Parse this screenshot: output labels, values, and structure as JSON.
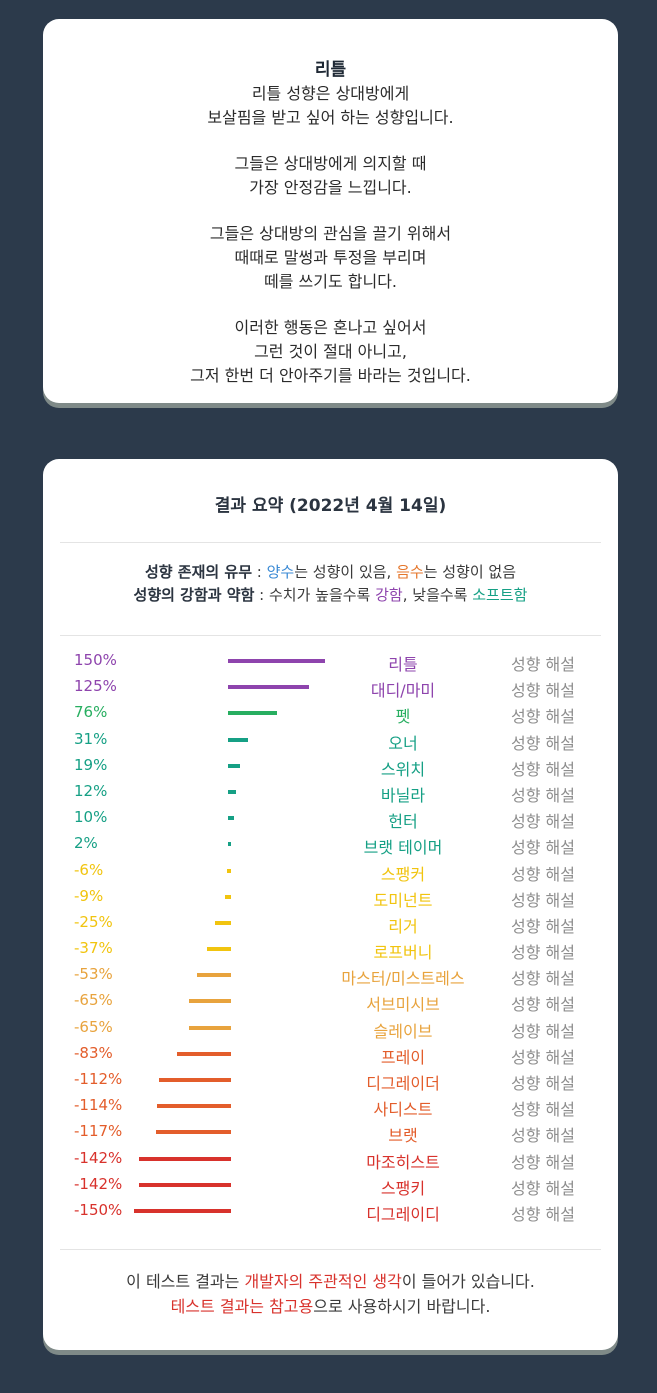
{
  "profile": {
    "title": "리틀",
    "paragraphs": [
      [
        "리틀 성향은 상대방에게",
        "보살핌을 받고 싶어 하는 성향입니다."
      ],
      [
        "그들은 상대방에게 의지할 때",
        "가장 안정감을 느낍니다."
      ],
      [
        "그들은 상대방의 관심을 끌기 위해서",
        "때때로 말썽과 투정을 부리며",
        "떼를 쓰기도 합니다."
      ],
      [
        "이러한 행동은 혼나고 싶어서",
        "그런 것이 절대 아니고,",
        "그저 한번 더 안아주기를 바라는 것입니다."
      ]
    ]
  },
  "summary": {
    "title": "결과 요약 (2022년 4월 14일)",
    "legend1": {
      "key": "성향 존재의 유무",
      "sep": " : ",
      "pos_word": "양수",
      "pos_text": "는 성향이 있음, ",
      "neg_word": "음수",
      "neg_text": "는 성향이 없음"
    },
    "legend2": {
      "key": "성향의 강함과 약함",
      "sep": " : ",
      "text1": "수치가 높을수록 ",
      "strong_word": "강함",
      "text2": ", 낮을수록 ",
      "soft_word": "소프트함"
    },
    "desc_label": "성향 해설",
    "rows": [
      {
        "pct": "150%",
        "value": 150,
        "name": "리틀",
        "color": "#8e44ad"
      },
      {
        "pct": "125%",
        "value": 125,
        "name": "대디/마미",
        "color": "#8e44ad"
      },
      {
        "pct": "76%",
        "value": 76,
        "name": "펫",
        "color": "#27ae60"
      },
      {
        "pct": "31%",
        "value": 31,
        "name": "오너",
        "color": "#16a085"
      },
      {
        "pct": "19%",
        "value": 19,
        "name": "스위치",
        "color": "#16a085"
      },
      {
        "pct": "12%",
        "value": 12,
        "name": "바닐라",
        "color": "#16a085"
      },
      {
        "pct": "10%",
        "value": 10,
        "name": "헌터",
        "color": "#16a085"
      },
      {
        "pct": "2%",
        "value": 2,
        "name": "브랫 테이머",
        "color": "#16a085"
      },
      {
        "pct": "-6%",
        "value": -6,
        "name": "스팽커",
        "color": "#f1c40f"
      },
      {
        "pct": "-9%",
        "value": -9,
        "name": "도미넌트",
        "color": "#f1c40f"
      },
      {
        "pct": "-25%",
        "value": -25,
        "name": "리거",
        "color": "#f1c40f"
      },
      {
        "pct": "-37%",
        "value": -37,
        "name": "로프버니",
        "color": "#f1c40f"
      },
      {
        "pct": "-53%",
        "value": -53,
        "name": "마스터/미스트레스",
        "color": "#e8a33d"
      },
      {
        "pct": "-65%",
        "value": -65,
        "name": "서브미시브",
        "color": "#e8a33d"
      },
      {
        "pct": "-65%",
        "value": -65,
        "name": "슬레이브",
        "color": "#e8a33d"
      },
      {
        "pct": "-83%",
        "value": -83,
        "name": "프레이",
        "color": "#e35d2b"
      },
      {
        "pct": "-112%",
        "value": -112,
        "name": "디그레이더",
        "color": "#e35d2b"
      },
      {
        "pct": "-114%",
        "value": -114,
        "name": "사디스트",
        "color": "#e35d2b"
      },
      {
        "pct": "-117%",
        "value": -117,
        "name": "브랫",
        "color": "#e35d2b"
      },
      {
        "pct": "-142%",
        "value": -142,
        "name": "마조히스트",
        "color": "#d8322c"
      },
      {
        "pct": "-142%",
        "value": -142,
        "name": "스팽키",
        "color": "#d8322c"
      },
      {
        "pct": "-150%",
        "value": -150,
        "name": "디그레이디",
        "color": "#d8322c"
      }
    ],
    "footer": {
      "l1a": "이 테스트 결과는 ",
      "l1b": "개발자의 주관적인 생각",
      "l1c": "이 들어가 있습니다.",
      "l2a": "테스트 결과는 참고용",
      "l2b": "으로 사용하시기 바랍니다."
    }
  }
}
